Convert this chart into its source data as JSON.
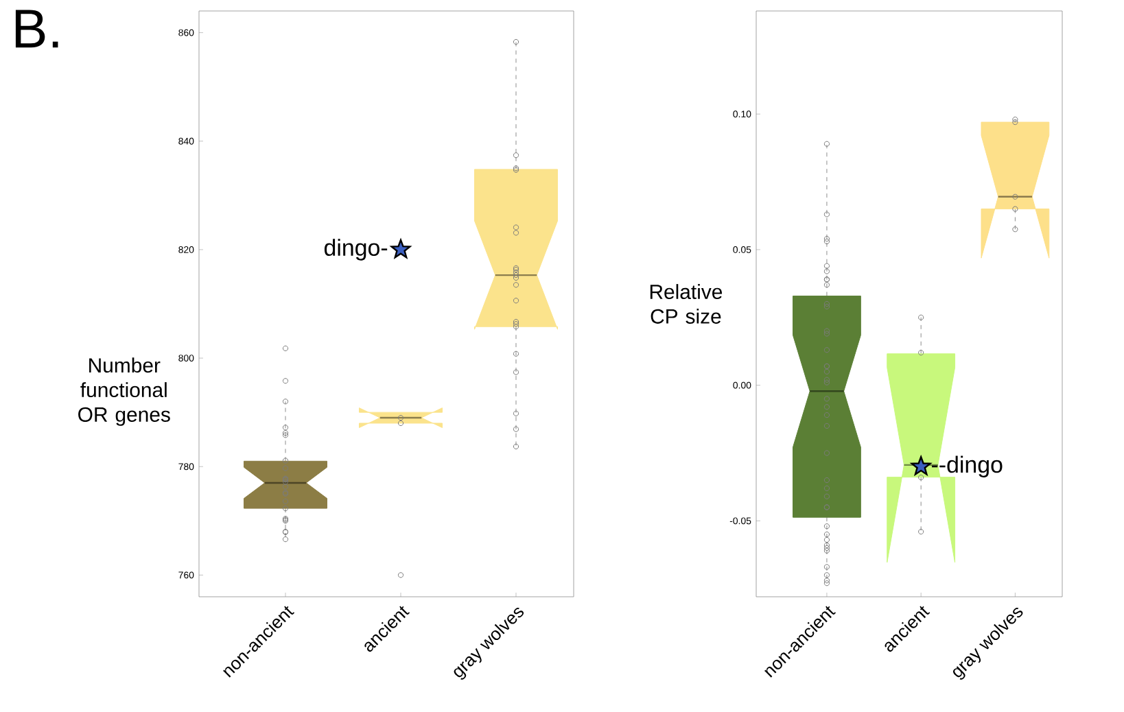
{
  "chart_data": [
    {
      "type": "box",
      "title": "B.",
      "ylabel": "Number functional OR genes",
      "categories": [
        "non-ancient",
        "ancient",
        "gray wolves"
      ],
      "colors": [
        "#8c7d45",
        "#fbe38c",
        "#fbe38c"
      ],
      "boxes": [
        {
          "low": 767,
          "q1": 772.3,
          "median": 777,
          "q3": 781,
          "high": 792
        },
        {
          "low": 788,
          "q1": 788,
          "median": 789,
          "q3": 790,
          "high": 790
        },
        {
          "low": 783.7,
          "q1": 805.8,
          "median": 815.3,
          "q3": 834.8,
          "high": 858.3
        }
      ],
      "series": [
        {
          "type": "scatter",
          "marker": "circle",
          "color": "#7a7a7a",
          "x": [
            "non-ancient",
            "non-ancient",
            "non-ancient",
            "non-ancient",
            "non-ancient",
            "non-ancient",
            "non-ancient",
            "non-ancient",
            "non-ancient",
            "non-ancient",
            "non-ancient",
            "non-ancient",
            "non-ancient",
            "non-ancient",
            "non-ancient",
            "non-ancient",
            "non-ancient",
            "non-ancient",
            "non-ancient",
            "non-ancient",
            "non-ancient",
            "non-ancient",
            "non-ancient",
            "ancient",
            "ancient",
            "ancient",
            "gray wolves",
            "gray wolves",
            "gray wolves",
            "gray wolves",
            "gray wolves",
            "gray wolves",
            "gray wolves",
            "gray wolves",
            "gray wolves",
            "gray wolves",
            "gray wolves",
            "gray wolves",
            "gray wolves",
            "gray wolves",
            "gray wolves",
            "gray wolves",
            "gray wolves",
            "gray wolves",
            "gray wolves",
            "gray wolves",
            "gray wolves"
          ],
          "values": [
            801.8,
            795.8,
            792,
            787.2,
            786.2,
            785.8,
            781.1,
            779.7,
            777.8,
            777.6,
            777.2,
            777.6,
            776.3,
            775.2,
            775,
            773.6,
            772.3,
            770.2,
            770.4,
            770,
            768,
            767.9,
            766.6,
            789,
            788,
            760,
            858.3,
            837.4,
            835,
            834.7,
            824.1,
            823.1,
            816.6,
            816.3,
            815.3,
            815.8,
            814.8,
            813.5,
            810.6,
            806.7,
            806.3,
            805.8,
            800.8,
            797.4,
            789.8,
            786.9,
            783.7
          ]
        },
        {
          "type": "scatter",
          "marker": "star",
          "color": "#3b5fc0",
          "x": [
            "ancient"
          ],
          "values": [
            820
          ]
        }
      ],
      "annotations": [
        {
          "text": "dingo-",
          "x": "ancient",
          "y": 820
        }
      ],
      "ylim": [
        756,
        864
      ],
      "yticks": [
        760,
        780,
        800,
        820,
        840,
        860
      ]
    },
    {
      "type": "box",
      "ylabel": "Relative CP size",
      "categories": [
        "non-ancient",
        "ancient",
        "gray wolves"
      ],
      "colors": [
        "#5b7f35",
        "#c8f87c",
        "#fde08a"
      ],
      "boxes": [
        {
          "low": -0.073,
          "q1": -0.0487,
          "median": -0.0022,
          "q3": 0.0329,
          "high": 0.0886
        },
        {
          "low": -0.054,
          "q1": -0.0339,
          "median": -0.0294,
          "q3": 0.0116,
          "high": 0.025
        },
        {
          "low": 0.0575,
          "q1": 0.065,
          "median": 0.0695,
          "q3": 0.097,
          "high": 0.098
        }
      ],
      "series": [
        {
          "type": "scatter",
          "marker": "circle",
          "color": "#7a7a7a",
          "x": [
            "non-ancient",
            "non-ancient",
            "non-ancient",
            "non-ancient",
            "non-ancient",
            "non-ancient",
            "non-ancient",
            "non-ancient",
            "non-ancient",
            "non-ancient",
            "non-ancient",
            "non-ancient",
            "non-ancient",
            "non-ancient",
            "non-ancient",
            "non-ancient",
            "non-ancient",
            "non-ancient",
            "non-ancient",
            "non-ancient",
            "non-ancient",
            "non-ancient",
            "non-ancient",
            "non-ancient",
            "non-ancient",
            "non-ancient",
            "non-ancient",
            "non-ancient",
            "non-ancient",
            "non-ancient",
            "non-ancient",
            "non-ancient",
            "non-ancient",
            "non-ancient",
            "non-ancient",
            "non-ancient",
            "non-ancient",
            "non-ancient",
            "non-ancient",
            "ancient",
            "ancient",
            "ancient",
            "ancient",
            "gray wolves",
            "gray wolves",
            "gray wolves",
            "gray wolves",
            "gray wolves"
          ],
          "values": [
            0.089,
            0.063,
            0.054,
            0.053,
            0.044,
            0.042,
            0.039,
            0.039,
            0.037,
            0.03,
            0.029,
            0.02,
            0.019,
            0.013,
            0.007,
            0.007,
            0.005,
            0.002,
            0.001,
            -0.005,
            -0.008,
            -0.011,
            -0.015,
            -0.025,
            -0.035,
            -0.038,
            -0.041,
            -0.045,
            -0.045,
            -0.052,
            -0.055,
            -0.057,
            -0.059,
            -0.06,
            -0.061,
            -0.067,
            -0.07,
            -0.072,
            -0.073,
            0.025,
            0.012,
            -0.034,
            -0.054,
            0.098,
            0.097,
            0.0695,
            0.065,
            0.0575
          ]
        },
        {
          "type": "scatter",
          "marker": "star",
          "color": "#3b5fc0",
          "x": [
            "ancient"
          ],
          "values": [
            -0.03
          ]
        }
      ],
      "annotations": [
        {
          "text": "--dingo",
          "x": "ancient",
          "y": -0.03
        }
      ],
      "ylim": [
        -0.078,
        0.138
      ],
      "yticks": [
        {
          "value": -0.05,
          "label": "-0.05"
        },
        {
          "value": 0,
          "label": "0.00"
        },
        {
          "value": 0.05,
          "label": "0.05"
        },
        {
          "value": 0.1,
          "label": "0.10"
        }
      ]
    }
  ]
}
